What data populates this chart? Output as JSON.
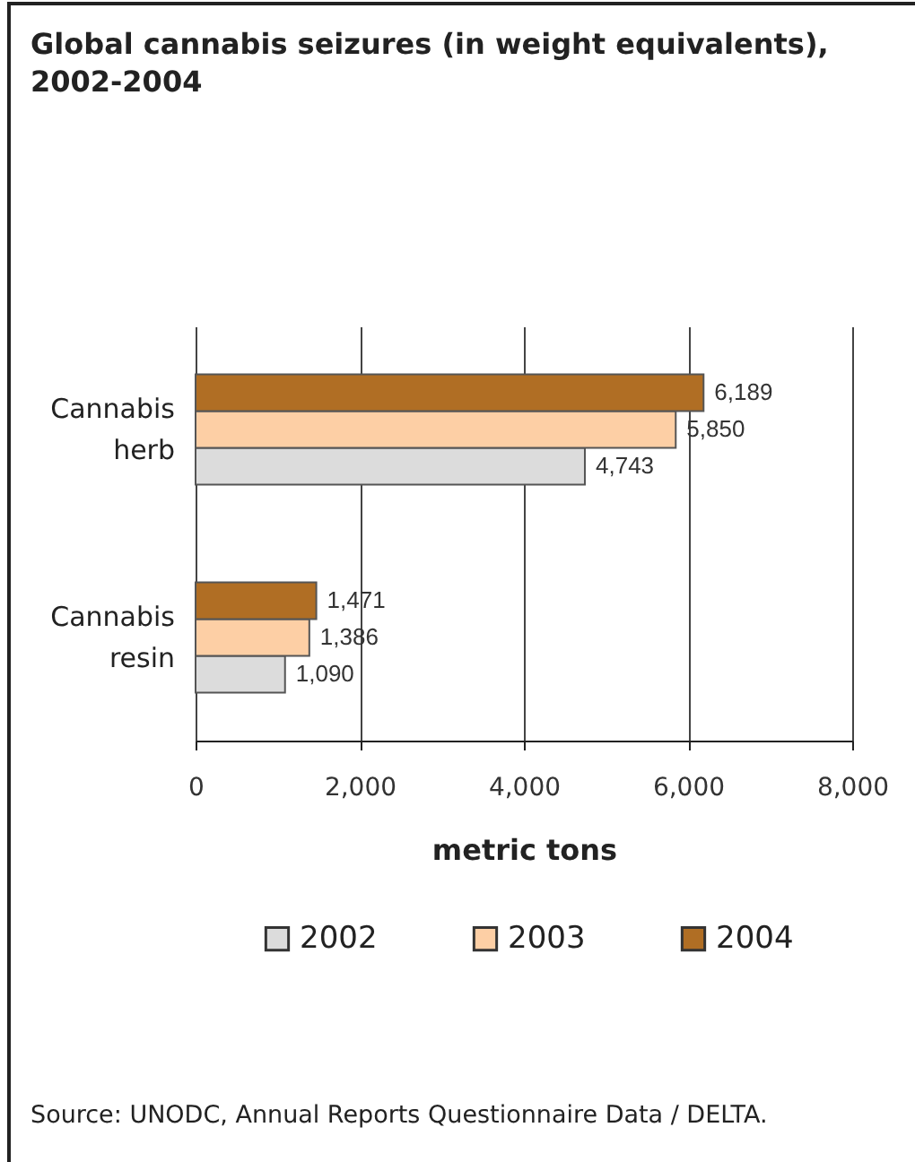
{
  "chart_data": {
    "type": "bar",
    "orientation": "horizontal",
    "title": "Global cannabis seizures (in weight equivalents), 2002-2004",
    "xlabel": "metric tons",
    "categories": [
      "Cannabis herb",
      "Cannabis resin"
    ],
    "series": [
      {
        "name": "2002",
        "color": "#dcdcdc",
        "values": [
          4743,
          1090
        ],
        "value_labels": [
          "4,743",
          "1,090"
        ]
      },
      {
        "name": "2003",
        "color": "#fdcfa5",
        "values": [
          5850,
          1386
        ],
        "value_labels": [
          "5,850",
          "1,386"
        ]
      },
      {
        "name": "2004",
        "color": "#b06e24",
        "values": [
          6189,
          1471
        ],
        "value_labels": [
          "6,189",
          "1,471"
        ]
      }
    ],
    "xlim": [
      0,
      8000
    ],
    "xticks": [
      0,
      {
        "value": 2000,
        "label": "2,000"
      },
      {
        "value": 4000,
        "label": "4,000"
      },
      {
        "value": 6000,
        "label": "6,000"
      },
      {
        "value": 8000,
        "label": "8,000"
      }
    ],
    "grid": "x",
    "legend": "bottom",
    "annotations": [
      "Source: UNODC, Annual Reports Questionnaire Data / DELTA."
    ]
  }
}
